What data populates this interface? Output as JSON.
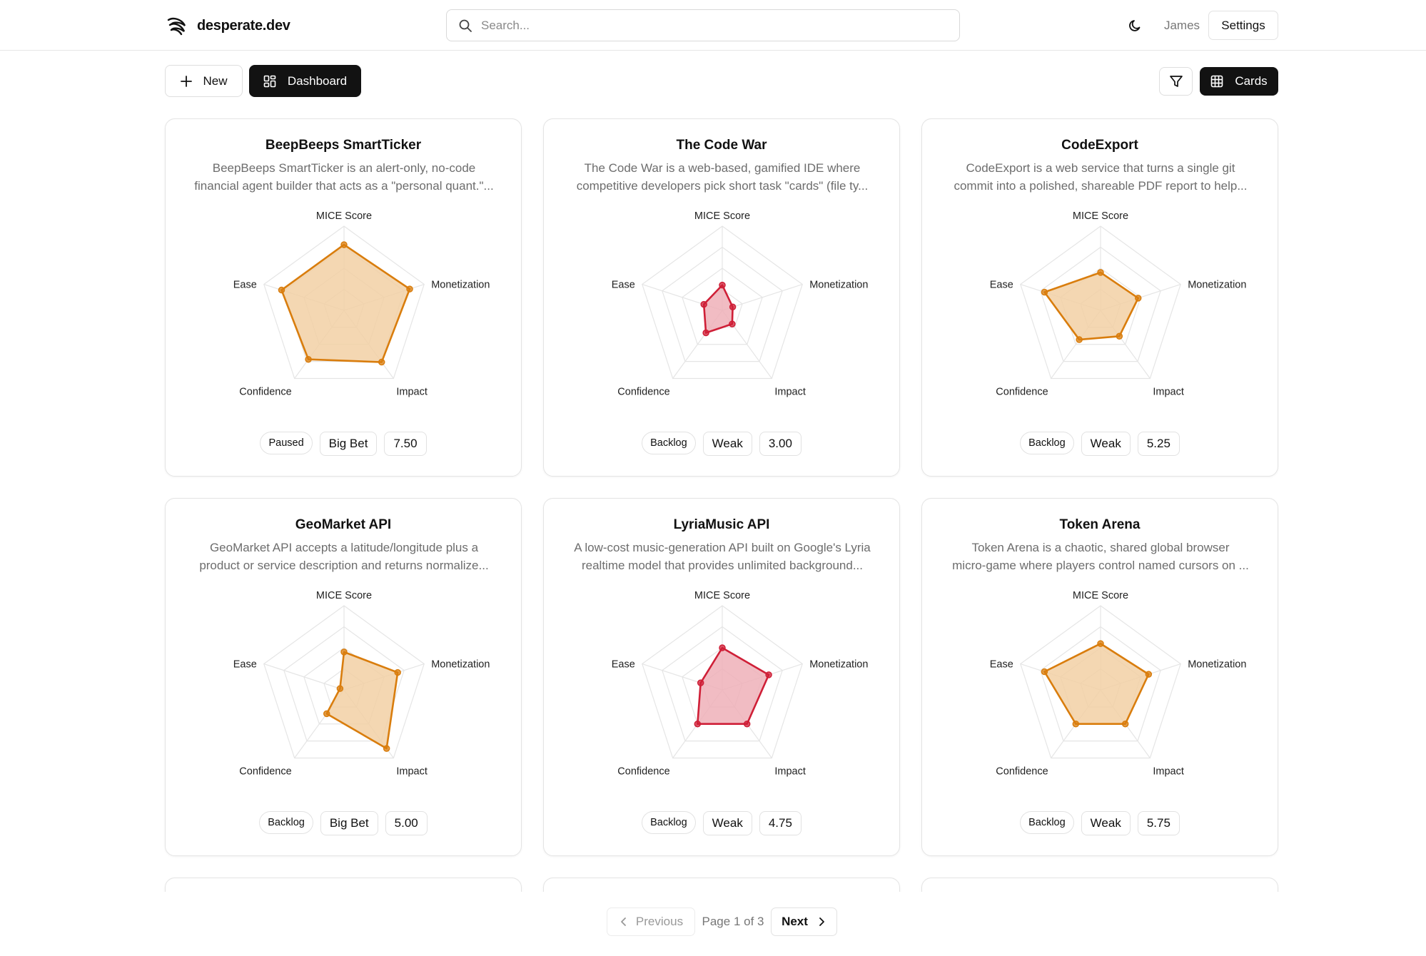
{
  "brand": {
    "name": "desperate.dev",
    "logo_icon": "swirl-logo-icon"
  },
  "search": {
    "placeholder": "Search..."
  },
  "header": {
    "user": "James",
    "settings_label": "Settings",
    "theme_icon": "moon-icon"
  },
  "toolbar": {
    "new_label": "New",
    "dashboard_label": "Dashboard",
    "cards_label": "Cards",
    "filter_icon": "filter-icon"
  },
  "colors": {
    "strong": "#d97d0d",
    "strong_fill": "#f2d0a4",
    "weak": "#cf1f37",
    "weak_fill": "#eeb0b9",
    "grid": "#e5e5e5"
  },
  "radar_axes": [
    "MICE Score",
    "Monetization",
    "Impact",
    "Confidence",
    "Ease"
  ],
  "cards": [
    {
      "title": "BeepBeeps SmartTicker",
      "desc": [
        "BeepBeeps SmartTicker is an alert-only, no-code",
        "financial agent builder that acts as a \"personal quant.\"..."
      ],
      "status": "Paused",
      "category": "Big Bet",
      "score": "7.50",
      "tone": "strong",
      "values": [
        0.78,
        0.82,
        0.76,
        0.72,
        0.78
      ]
    },
    {
      "title": "The Code War",
      "desc": [
        "The Code War is a web-based, gamified IDE where",
        "competitive developers pick short task \"cards\" (file ty..."
      ],
      "status": "Backlog",
      "category": "Weak",
      "score": "3.00",
      "tone": "weak",
      "values": [
        0.3,
        0.13,
        0.2,
        0.33,
        0.23
      ]
    },
    {
      "title": "CodeExport",
      "desc": [
        "CodeExport is a web service that turns a single git",
        "commit into a polished, shareable PDF report to help..."
      ],
      "status": "Backlog",
      "category": "Weak",
      "score": "5.25",
      "tone": "strong",
      "values": [
        0.45,
        0.47,
        0.38,
        0.43,
        0.7
      ]
    },
    {
      "title": "GeoMarket API",
      "desc": [
        "GeoMarket API accepts a latitude/longitude plus a",
        "product or service description and returns normalize..."
      ],
      "status": "Backlog",
      "category": "Big Bet",
      "score": "5.00",
      "tone": "strong",
      "values": [
        0.45,
        0.67,
        0.86,
        0.35,
        0.05
      ]
    },
    {
      "title": "LyriaMusic API",
      "desc": [
        "A low-cost music-generation API built on Google's Lyria",
        "realtime model that provides unlimited background..."
      ],
      "status": "Backlog",
      "category": "Weak",
      "score": "4.75",
      "tone": "weak",
      "values": [
        0.5,
        0.58,
        0.5,
        0.5,
        0.27
      ]
    },
    {
      "title": "Token Arena",
      "desc": [
        "Token Arena is a chaotic, shared global browser",
        "micro-game where players control named cursors on ..."
      ],
      "status": "Backlog",
      "category": "Weak",
      "score": "5.75",
      "tone": "strong",
      "values": [
        0.55,
        0.6,
        0.5,
        0.5,
        0.7
      ]
    }
  ],
  "pagination": {
    "prev_label": "Previous",
    "page_label": "Page 1 of 3",
    "next_label": "Next"
  }
}
